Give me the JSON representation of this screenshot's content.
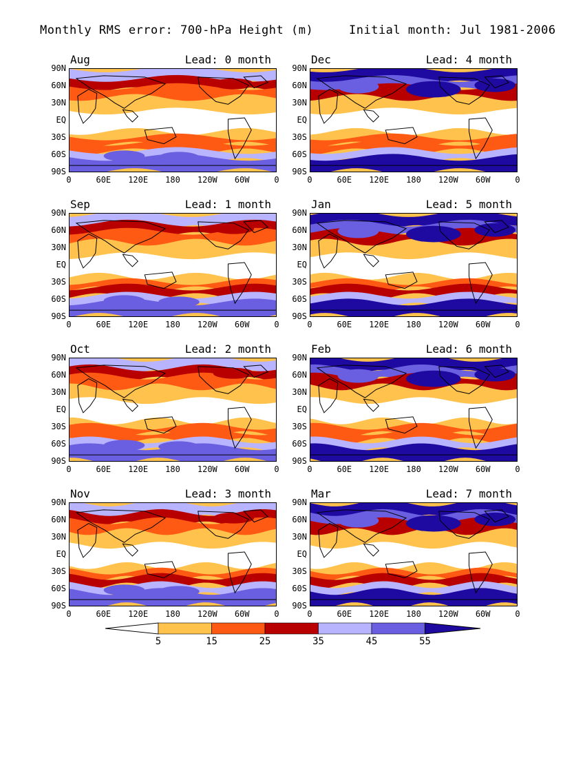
{
  "title_left": "Monthly RMS error: 700-hPa Height (m)",
  "title_right": "Initial month: Jul 1981-2006",
  "lat_labels": [
    "90N",
    "60N",
    "30N",
    "EQ",
    "30S",
    "60S",
    "90S"
  ],
  "lon_labels": [
    "0",
    "60E",
    "120E",
    "180",
    "120W",
    "60W",
    "0"
  ],
  "panels": [
    {
      "month": "Aug",
      "lead": "Lead: 0 month"
    },
    {
      "month": "Dec",
      "lead": "Lead: 4 month"
    },
    {
      "month": "Sep",
      "lead": "Lead: 1 month"
    },
    {
      "month": "Jan",
      "lead": "Lead: 5 month"
    },
    {
      "month": "Oct",
      "lead": "Lead: 2 month"
    },
    {
      "month": "Feb",
      "lead": "Lead: 6 month"
    },
    {
      "month": "Nov",
      "lead": "Lead: 3 month"
    },
    {
      "month": "Mar",
      "lead": "Lead: 7 month"
    }
  ],
  "colorbar": {
    "labels": [
      "5",
      "15",
      "25",
      "35",
      "45",
      "55"
    ],
    "colors": [
      "#ffffff",
      "#ffc24d",
      "#ff5a14",
      "#b80000",
      "#b9b4ff",
      "#6a5fe0",
      "#1e0aa0"
    ]
  }
}
